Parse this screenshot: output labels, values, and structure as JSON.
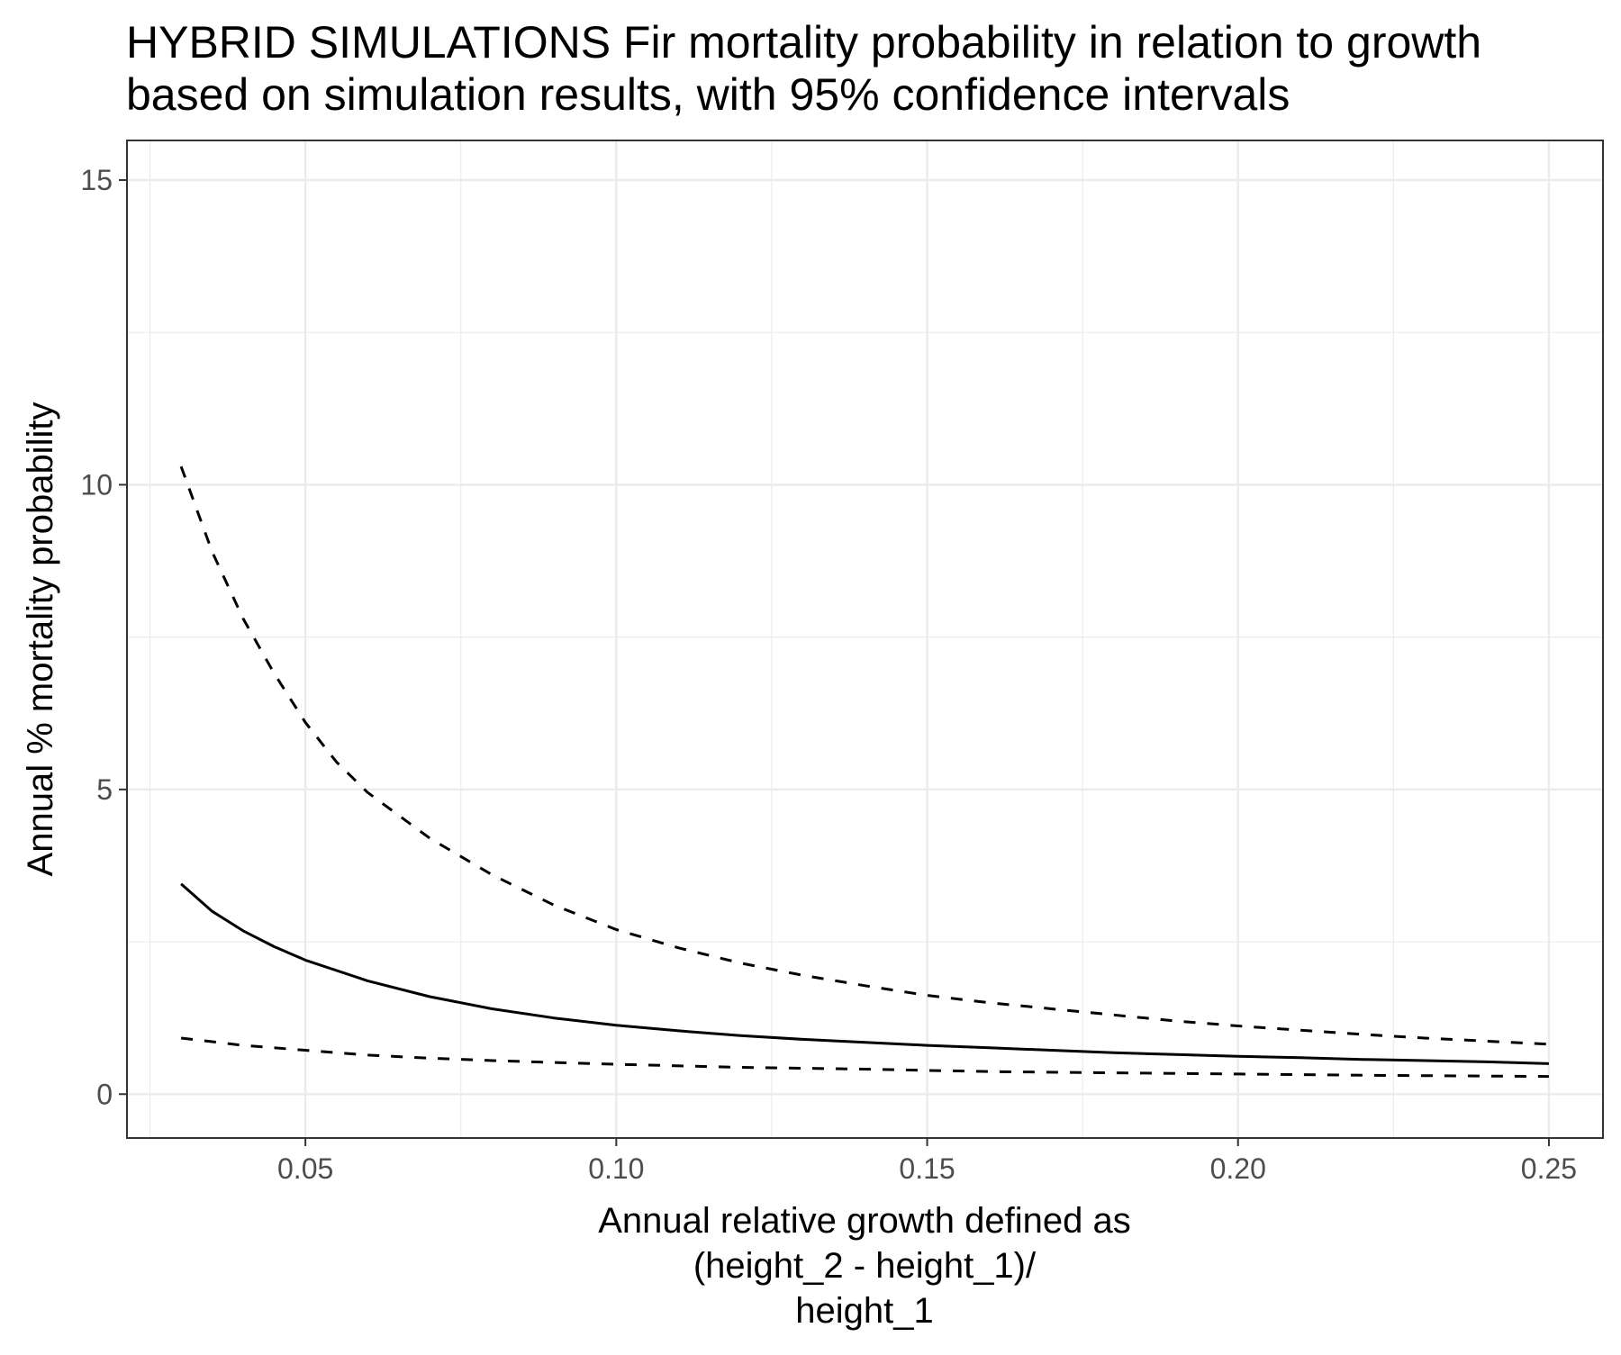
{
  "chart_data": {
    "type": "line",
    "title_lines": [
      "HYBRID SIMULATIONS Fir mortality probability in relation to growth",
      "based on simulation results, with 95% confidence intervals"
    ],
    "xlabel_lines": [
      "Annual relative growth defined as",
      "(height_2 - height_1)/",
      "height_1"
    ],
    "ylabel": "Annual % mortality probability",
    "xlim": [
      0.0213,
      0.2587
    ],
    "ylim": [
      -0.72,
      15.65
    ],
    "x_ticks": [
      0.05,
      0.1,
      0.15,
      0.2,
      0.25
    ],
    "x_tick_labels": [
      "0.05",
      "0.10",
      "0.15",
      "0.20",
      "0.25"
    ],
    "y_ticks": [
      0,
      5,
      10,
      15
    ],
    "y_tick_labels": [
      "0",
      "5",
      "10",
      "15"
    ],
    "x_minor_ticks": [
      0.025,
      0.075,
      0.125,
      0.175,
      0.225
    ],
    "y_minor_ticks": [
      2.5,
      7.5,
      12.5
    ],
    "grid": true,
    "legend": "none",
    "series": [
      {
        "style": "solid",
        "color": "#000000",
        "x": [
          0.03,
          0.035,
          0.04,
          0.045,
          0.05,
          0.06,
          0.07,
          0.08,
          0.09,
          0.1,
          0.11,
          0.12,
          0.13,
          0.14,
          0.15,
          0.16,
          0.17,
          0.18,
          0.19,
          0.2,
          0.21,
          0.22,
          0.23,
          0.24,
          0.25
        ],
        "y": [
          3.45,
          3.0,
          2.68,
          2.42,
          2.2,
          1.86,
          1.6,
          1.4,
          1.25,
          1.13,
          1.04,
          0.96,
          0.9,
          0.85,
          0.8,
          0.76,
          0.72,
          0.68,
          0.65,
          0.62,
          0.6,
          0.57,
          0.55,
          0.53,
          0.5
        ]
      },
      {
        "style": "dashed",
        "color": "#000000",
        "x": [
          0.03,
          0.035,
          0.04,
          0.045,
          0.05,
          0.055,
          0.06,
          0.07,
          0.08,
          0.09,
          0.1,
          0.11,
          0.12,
          0.13,
          0.14,
          0.15,
          0.16,
          0.17,
          0.18,
          0.19,
          0.2,
          0.21,
          0.22,
          0.23,
          0.24,
          0.25
        ],
        "y": [
          10.3,
          8.9,
          7.8,
          6.9,
          6.1,
          5.45,
          4.95,
          4.2,
          3.6,
          3.1,
          2.7,
          2.4,
          2.15,
          1.95,
          1.78,
          1.62,
          1.5,
          1.4,
          1.3,
          1.2,
          1.12,
          1.05,
          0.98,
          0.92,
          0.87,
          0.82
        ]
      },
      {
        "style": "dashed",
        "color": "#000000",
        "x": [
          0.03,
          0.04,
          0.05,
          0.06,
          0.07,
          0.08,
          0.09,
          0.1,
          0.12,
          0.14,
          0.15,
          0.16,
          0.18,
          0.2,
          0.22,
          0.25
        ],
        "y": [
          0.92,
          0.8,
          0.72,
          0.64,
          0.59,
          0.55,
          0.52,
          0.49,
          0.44,
          0.41,
          0.39,
          0.37,
          0.35,
          0.33,
          0.31,
          0.29
        ]
      }
    ]
  }
}
